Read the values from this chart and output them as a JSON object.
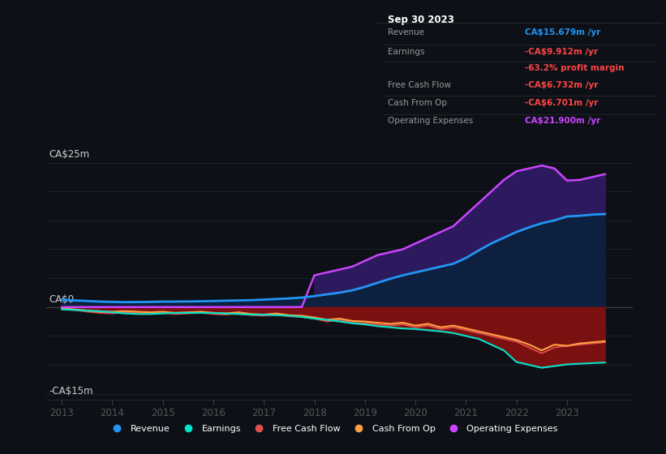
{
  "bg_color": "#0d1117",
  "chart_bg": "#0d1117",
  "y_label_top": "CA$25m",
  "y_label_zero": "CA$0",
  "y_label_bottom": "-CA$15m",
  "ylim": [
    -16,
    28
  ],
  "xlim": [
    2012.7,
    2024.3
  ],
  "x_ticks": [
    2013,
    2014,
    2015,
    2016,
    2017,
    2018,
    2019,
    2020,
    2021,
    2022,
    2023
  ],
  "colors": {
    "revenue": "#2196f3",
    "earnings": "#00e5cc",
    "free_cash_flow": "#e05050",
    "cash_from_op": "#ffa040",
    "operating_expenses": "#cc44ff",
    "fill_earnings_neg": "#7a1010",
    "fill_opex_above_rev": "#2d1a5e",
    "fill_rev_above_zero": "#0d2040"
  },
  "years": [
    2013.0,
    2013.25,
    2013.5,
    2013.75,
    2014.0,
    2014.25,
    2014.5,
    2014.75,
    2015.0,
    2015.25,
    2015.5,
    2015.75,
    2016.0,
    2016.25,
    2016.5,
    2016.75,
    2017.0,
    2017.25,
    2017.5,
    2017.75,
    2018.0,
    2018.25,
    2018.5,
    2018.75,
    2019.0,
    2019.25,
    2019.5,
    2019.75,
    2020.0,
    2020.25,
    2020.5,
    2020.75,
    2021.0,
    2021.25,
    2021.5,
    2021.75,
    2022.0,
    2022.25,
    2022.5,
    2022.75,
    2023.0,
    2023.25,
    2023.5,
    2023.75
  ],
  "revenue": [
    1.3,
    1.15,
    1.05,
    0.95,
    0.9,
    0.85,
    0.87,
    0.9,
    0.95,
    0.95,
    0.97,
    1.0,
    1.05,
    1.1,
    1.15,
    1.2,
    1.3,
    1.4,
    1.5,
    1.65,
    1.9,
    2.2,
    2.5,
    2.9,
    3.5,
    4.2,
    4.9,
    5.5,
    6.0,
    6.5,
    7.0,
    7.5,
    8.5,
    9.8,
    11.0,
    12.0,
    13.0,
    13.8,
    14.5,
    15.0,
    15.679,
    15.8,
    16.0,
    16.1
  ],
  "earnings": [
    -0.4,
    -0.5,
    -0.6,
    -0.7,
    -0.9,
    -1.1,
    -1.2,
    -1.2,
    -1.1,
    -1.0,
    -1.0,
    -1.0,
    -1.0,
    -1.1,
    -1.2,
    -1.3,
    -1.3,
    -1.4,
    -1.5,
    -1.7,
    -2.0,
    -2.2,
    -2.5,
    -2.8,
    -3.0,
    -3.3,
    -3.5,
    -3.7,
    -3.8,
    -4.0,
    -4.2,
    -4.5,
    -5.0,
    -5.5,
    -6.5,
    -7.5,
    -9.5,
    -10.0,
    -10.5,
    -10.2,
    -9.912,
    -9.8,
    -9.7,
    -9.6
  ],
  "free_cash_flow": [
    -0.3,
    -0.5,
    -0.8,
    -1.0,
    -1.1,
    -0.9,
    -1.0,
    -1.1,
    -1.0,
    -1.2,
    -1.1,
    -1.0,
    -1.2,
    -1.3,
    -1.1,
    -1.4,
    -1.5,
    -1.3,
    -1.6,
    -1.7,
    -2.0,
    -2.5,
    -2.2,
    -2.7,
    -2.8,
    -3.0,
    -3.2,
    -3.0,
    -3.5,
    -3.2,
    -3.8,
    -3.5,
    -4.0,
    -4.5,
    -5.0,
    -5.5,
    -6.0,
    -7.0,
    -8.0,
    -7.0,
    -6.732,
    -6.5,
    -6.3,
    -6.1
  ],
  "cash_from_op": [
    -0.2,
    -0.4,
    -0.6,
    -0.8,
    -0.8,
    -0.7,
    -0.8,
    -0.9,
    -0.8,
    -1.0,
    -0.9,
    -0.8,
    -1.0,
    -1.1,
    -0.9,
    -1.2,
    -1.3,
    -1.1,
    -1.4,
    -1.5,
    -1.8,
    -2.2,
    -2.0,
    -2.4,
    -2.5,
    -2.7,
    -2.9,
    -2.7,
    -3.2,
    -2.9,
    -3.5,
    -3.2,
    -3.7,
    -4.2,
    -4.7,
    -5.2,
    -5.7,
    -6.5,
    -7.5,
    -6.5,
    -6.701,
    -6.3,
    -6.1,
    -5.9
  ],
  "operating_expenses": [
    0.0,
    0.0,
    0.0,
    0.0,
    0.0,
    0.0,
    0.0,
    0.0,
    0.0,
    0.0,
    0.0,
    0.0,
    0.0,
    0.0,
    0.0,
    0.0,
    0.0,
    0.0,
    0.0,
    0.0,
    5.5,
    6.0,
    6.5,
    7.0,
    8.0,
    9.0,
    9.5,
    10.0,
    11.0,
    12.0,
    13.0,
    14.0,
    16.0,
    18.0,
    20.0,
    22.0,
    23.5,
    24.0,
    24.5,
    24.0,
    21.9,
    22.0,
    22.5,
    23.0
  ],
  "info_box": {
    "date": "Sep 30 2023",
    "rows": [
      {
        "label": "Revenue",
        "value": "CA$15.679m /yr",
        "color": "#2196f3"
      },
      {
        "label": "Earnings",
        "value": "-CA$9.912m /yr",
        "color": "#ff4444"
      },
      {
        "label": "",
        "value": "-63.2% profit margin",
        "color": "#ff4444"
      },
      {
        "label": "Free Cash Flow",
        "value": "-CA$6.732m /yr",
        "color": "#ff4444"
      },
      {
        "label": "Cash From Op",
        "value": "-CA$6.701m /yr",
        "color": "#ff4444"
      },
      {
        "label": "Operating Expenses",
        "value": "CA$21.900m /yr",
        "color": "#cc44ff"
      }
    ]
  },
  "legend": [
    {
      "label": "Revenue",
      "color": "#2196f3"
    },
    {
      "label": "Earnings",
      "color": "#00e5cc"
    },
    {
      "label": "Free Cash Flow",
      "color": "#e05050"
    },
    {
      "label": "Cash From Op",
      "color": "#ffa040"
    },
    {
      "label": "Operating Expenses",
      "color": "#cc44ff"
    }
  ]
}
